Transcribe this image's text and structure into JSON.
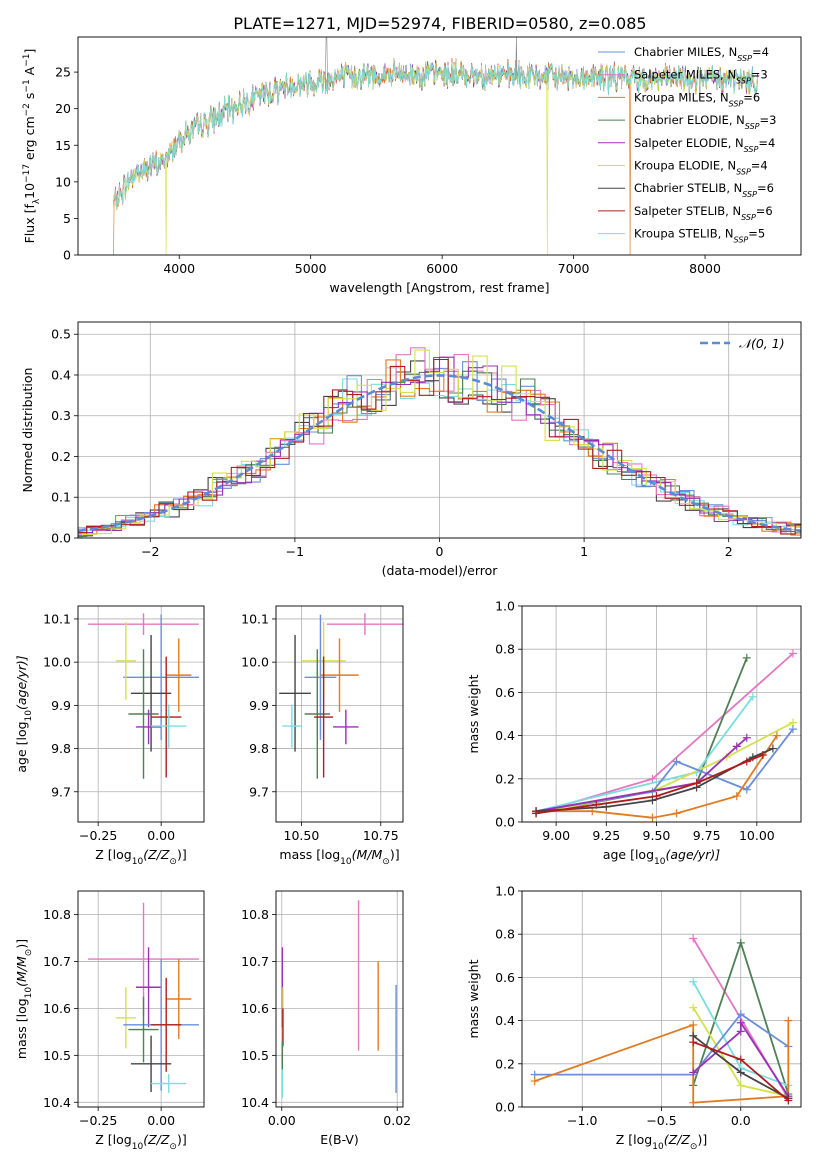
{
  "title": "PLATE=1271, MJD=52974, FIBERID=0580, z=0.085",
  "colors": {
    "Chabrier MILES": "#6a8fd8",
    "Salpeter MILES": "#e377c2",
    "Kroupa MILES": "#e07b22",
    "Chabrier ELODIE": "#4e8054",
    "Salpeter ELODIE": "#9b30b5",
    "Kroupa ELODIE": "#d6e04c",
    "Chabrier STELIB": "#444444",
    "Salpeter STELIB": "#b01c1c",
    "Kroupa STELIB": "#7adde0",
    "normal": "#5b8ad6"
  },
  "legend": [
    {
      "model": "Chabrier MILES",
      "label": "Chabrier MILES, N",
      "n": "4"
    },
    {
      "model": "Salpeter MILES",
      "label": "Salpeter MILES, N",
      "n": "3"
    },
    {
      "model": "Kroupa MILES",
      "label": "Kroupa MILES, N",
      "n": "6"
    },
    {
      "model": "Chabrier ELODIE",
      "label": "Chabrier ELODIE, N",
      "n": "3"
    },
    {
      "model": "Salpeter ELODIE",
      "label": "Salpeter ELODIE, N",
      "n": "4"
    },
    {
      "model": "Kroupa ELODIE",
      "label": "Kroupa ELODIE, N",
      "n": "4"
    },
    {
      "model": "Chabrier STELIB",
      "label": "Chabrier STELIB, N",
      "n": "6"
    },
    {
      "model": "Salpeter STELIB",
      "label": "Salpeter STELIB, N",
      "n": "6"
    },
    {
      "model": "Kroupa STELIB",
      "label": "Kroupa STELIB, N",
      "n": "5"
    }
  ],
  "legend_sub": "SSP",
  "legend2_label": "𝒩(0, 1)",
  "chart_data": [
    {
      "id": "spectrum",
      "type": "line",
      "xlabel": "wavelength [Angstrom, rest frame]",
      "ylabel": "Flux [f",
      "xlim": [
        3230,
        8730
      ],
      "ylim": [
        0,
        29.8
      ],
      "xticks": [
        4000,
        5000,
        6000,
        7000,
        8000
      ],
      "yticks": [
        0,
        5,
        10,
        15,
        20,
        25
      ],
      "grid": false,
      "continuum": [
        [
          3500,
          7
        ],
        [
          3650,
          11
        ],
        [
          3900,
          13
        ],
        [
          4000,
          16
        ],
        [
          4200,
          18
        ],
        [
          4500,
          21
        ],
        [
          4800,
          23
        ],
        [
          5200,
          24.3
        ],
        [
          5600,
          24.6
        ],
        [
          6000,
          24.8
        ],
        [
          6500,
          24.5
        ],
        [
          7000,
          24.3
        ],
        [
          7500,
          24.2
        ],
        [
          8000,
          24
        ],
        [
          8400,
          23.8
        ]
      ],
      "range": [
        3500,
        8400
      ],
      "dropouts": [
        {
          "model": "Kroupa ELODIE",
          "start": 3900,
          "end": 6800
        },
        {
          "model": "Kroupa MILES",
          "start": 3500,
          "end": 7430
        }
      ]
    },
    {
      "id": "residuals",
      "type": "histogram",
      "xlabel": "(data-model)/error",
      "ylabel": "Normed distribution",
      "xlim": [
        -2.5,
        2.5
      ],
      "ylim": [
        0,
        0.53
      ],
      "xticks": [
        -2,
        -1,
        0,
        1,
        2
      ],
      "yticks": [
        0.0,
        0.1,
        0.2,
        0.3,
        0.4,
        0.5
      ],
      "grid": true,
      "bin_width": 0.1,
      "reference": {
        "type": "normal",
        "mean": 0,
        "sigma": 1,
        "style": "dashed"
      }
    },
    {
      "id": "age-Z",
      "type": "errorbar",
      "xlabel": "Z [log",
      "xlabel_parts": [
        "Z [log",
        "10",
        "(Z/Z",
        "⊙",
        ")]"
      ],
      "ylabel": "age  [log",
      "ylabel_parts": [
        "age  [log",
        "10",
        "(age/yr)]"
      ],
      "xlim": [
        -0.33,
        0.17
      ],
      "ylim": [
        9.63,
        10.13
      ],
      "xticks": [
        -0.25,
        0.0
      ],
      "yticks": [
        9.7,
        9.8,
        9.9,
        10.0,
        10.1
      ],
      "grid": true,
      "points": [
        {
          "model": "Salpeter MILES",
          "x": -0.07,
          "xerr": 0.22,
          "y": 10.088,
          "yerr": 0.025
        },
        {
          "model": "Chabrier MILES",
          "x": 0.0,
          "xerr": 0.15,
          "y": 9.965,
          "yerr": 0.145
        },
        {
          "model": "Kroupa MILES",
          "x": 0.07,
          "xerr": 0.05,
          "y": 9.97,
          "yerr": 0.085
        },
        {
          "model": "Chabrier STELIB",
          "x": -0.04,
          "xerr": 0.08,
          "y": 9.928,
          "yerr": 0.135
        },
        {
          "model": "Kroupa ELODIE",
          "x": -0.14,
          "xerr": 0.04,
          "y": 10.003,
          "yerr": 0.09
        },
        {
          "model": "Chabrier ELODIE",
          "x": -0.07,
          "xerr": 0.06,
          "y": 9.88,
          "yerr": 0.15
        },
        {
          "model": "Salpeter STELIB",
          "x": 0.02,
          "xerr": 0.06,
          "y": 9.873,
          "yerr": 0.14
        },
        {
          "model": "Salpeter ELODIE",
          "x": -0.05,
          "xerr": 0.05,
          "y": 9.85,
          "yerr": 0.04
        },
        {
          "model": "Kroupa STELIB",
          "x": 0.03,
          "xerr": 0.07,
          "y": 9.852,
          "yerr": 0.05
        }
      ]
    },
    {
      "id": "age-mass",
      "type": "errorbar",
      "xlabel": "mass [log",
      "xlabel_parts": [
        "mass [log",
        "10",
        "(M/M",
        "⊙",
        ")]"
      ],
      "xlim": [
        10.42,
        10.82
      ],
      "ylim": [
        9.63,
        10.13
      ],
      "xticks": [
        10.5,
        10.75
      ],
      "yticks": [
        9.7,
        9.8,
        9.9,
        10.0,
        10.1
      ],
      "grid": true,
      "points": [
        {
          "model": "Salpeter MILES",
          "x": 10.7,
          "xerr": 0.12,
          "y": 10.088,
          "yerr": 0.025
        },
        {
          "model": "Kroupa ELODIE",
          "x": 10.57,
          "xerr": 0.07,
          "y": 10.003,
          "yerr": 0.09
        },
        {
          "model": "Chabrier MILES",
          "x": 10.56,
          "xerr": 0.05,
          "y": 9.965,
          "yerr": 0.145
        },
        {
          "model": "Kroupa MILES",
          "x": 10.62,
          "xerr": 0.06,
          "y": 9.97,
          "yerr": 0.085
        },
        {
          "model": "Chabrier STELIB",
          "x": 10.48,
          "xerr": 0.05,
          "y": 9.928,
          "yerr": 0.135
        },
        {
          "model": "Chabrier ELODIE",
          "x": 10.55,
          "xerr": 0.04,
          "y": 9.88,
          "yerr": 0.15
        },
        {
          "model": "Salpeter STELIB",
          "x": 10.57,
          "xerr": 0.03,
          "y": 9.873,
          "yerr": 0.14
        },
        {
          "model": "Salpeter ELODIE",
          "x": 10.64,
          "xerr": 0.04,
          "y": 9.85,
          "yerr": 0.04
        },
        {
          "model": "Kroupa STELIB",
          "x": 10.47,
          "xerr": 0.03,
          "y": 9.852,
          "yerr": 0.05
        }
      ]
    },
    {
      "id": "weight-age",
      "type": "line",
      "xlabel": "age  [log",
      "xlabel_parts": [
        "age  [log",
        "10",
        "(age/yr)]"
      ],
      "ylabel": "mass weight",
      "xlim": [
        8.83,
        10.22
      ],
      "ylim": [
        0,
        1.0
      ],
      "xticks": [
        9.0,
        9.25,
        9.5,
        9.75,
        10.0
      ],
      "yticks": [
        0.0,
        0.2,
        0.4,
        0.6,
        0.8,
        1.0
      ],
      "grid": true,
      "series": [
        {
          "model": "Salpeter MILES",
          "x": [
            8.9,
            9.48,
            10.18
          ],
          "y": [
            0.04,
            0.2,
            0.78
          ]
        },
        {
          "model": "Chabrier ELODIE",
          "x": [
            8.9,
            9.7,
            9.95
          ],
          "y": [
            0.04,
            0.18,
            0.76
          ]
        },
        {
          "model": "Kroupa STELIB",
          "x": [
            8.9,
            9.7,
            9.98
          ],
          "y": [
            0.05,
            0.23,
            0.58
          ]
        },
        {
          "model": "Kroupa ELODIE",
          "x": [
            8.9,
            9.5,
            9.85,
            10.18
          ],
          "y": [
            0.04,
            0.15,
            0.3,
            0.46
          ]
        },
        {
          "model": "Chabrier MILES",
          "x": [
            8.9,
            9.48,
            9.6,
            9.95,
            10.18
          ],
          "y": [
            0.05,
            0.14,
            0.28,
            0.15,
            0.43
          ]
        },
        {
          "model": "Kroupa MILES",
          "x": [
            8.9,
            9.18,
            9.48,
            9.6,
            9.9,
            10.1
          ],
          "y": [
            0.05,
            0.05,
            0.02,
            0.04,
            0.12,
            0.4
          ]
        },
        {
          "model": "Salpeter ELODIE",
          "x": [
            8.9,
            9.7,
            9.9,
            9.95
          ],
          "y": [
            0.05,
            0.18,
            0.35,
            0.39
          ]
        },
        {
          "model": "Chabrier STELIB",
          "x": [
            8.9,
            9.25,
            9.48,
            9.7,
            9.98,
            10.08
          ],
          "y": [
            0.05,
            0.07,
            0.1,
            0.16,
            0.3,
            0.34
          ]
        },
        {
          "model": "Salpeter STELIB",
          "x": [
            8.9,
            9.2,
            9.5,
            9.7,
            9.95,
            10.03
          ],
          "y": [
            0.04,
            0.08,
            0.12,
            0.18,
            0.28,
            0.31
          ]
        }
      ]
    },
    {
      "id": "mass-Z",
      "type": "errorbar",
      "xlabel": "Z [log",
      "xlabel_parts": [
        "Z [log",
        "10",
        "(Z/Z",
        "⊙",
        ")]"
      ],
      "ylabel": "mass [log",
      "ylabel_parts": [
        "mass [log",
        "10",
        "(M/M",
        "⊙",
        ")]"
      ],
      "xlim": [
        -0.33,
        0.17
      ],
      "ylim": [
        10.39,
        10.85
      ],
      "xticks": [
        -0.25,
        0.0
      ],
      "yticks": [
        10.4,
        10.5,
        10.6,
        10.7,
        10.8
      ],
      "grid": true,
      "points": [
        {
          "model": "Salpeter MILES",
          "x": -0.07,
          "xerr": 0.22,
          "y": 10.705,
          "yerr": 0.12
        },
        {
          "model": "Salpeter ELODIE",
          "x": -0.05,
          "xerr": 0.05,
          "y": 10.645,
          "yerr": 0.085
        },
        {
          "model": "Kroupa MILES",
          "x": 0.07,
          "xerr": 0.05,
          "y": 10.62,
          "yerr": 0.085
        },
        {
          "model": "Kroupa ELODIE",
          "x": -0.14,
          "xerr": 0.04,
          "y": 10.58,
          "yerr": 0.065
        },
        {
          "model": "Chabrier MILES",
          "x": 0.0,
          "xerr": 0.15,
          "y": 10.565,
          "yerr": 0.14
        },
        {
          "model": "Salpeter STELIB",
          "x": 0.02,
          "xerr": 0.06,
          "y": 10.565,
          "yerr": 0.1
        },
        {
          "model": "Chabrier ELODIE",
          "x": -0.07,
          "xerr": 0.06,
          "y": 10.555,
          "yerr": 0.07
        },
        {
          "model": "Chabrier STELIB",
          "x": -0.04,
          "xerr": 0.08,
          "y": 10.482,
          "yerr": 0.06
        },
        {
          "model": "Kroupa STELIB",
          "x": 0.03,
          "xerr": 0.07,
          "y": 10.44,
          "yerr": 0.02
        }
      ]
    },
    {
      "id": "mass-EBV",
      "type": "errorbar",
      "xlabel": "E(B-V)",
      "xlim": [
        -0.001,
        0.021
      ],
      "ylim": [
        10.39,
        10.85
      ],
      "xticks": [
        0.0,
        0.02
      ],
      "xticklabels": [
        "0.00",
        "0.02"
      ],
      "yticks": [
        10.4,
        10.5,
        10.6,
        10.7,
        10.8
      ],
      "grid": true,
      "points": [
        {
          "model": "Salpeter ELODIE",
          "x": 0.0001,
          "y": 10.645,
          "yerr": 0.085
        },
        {
          "model": "Kroupa ELODIE",
          "x": 0.0002,
          "y": 10.58,
          "yerr": 0.065
        },
        {
          "model": "Salpeter STELIB",
          "x": 0.0002,
          "y": 10.56,
          "yerr": 0.04
        },
        {
          "model": "Chabrier ELODIE",
          "x": 0.0001,
          "y": 10.5,
          "yerr": 0.03
        },
        {
          "model": "Kroupa STELIB",
          "x": 0.0001,
          "y": 10.44,
          "yerr": 0.03
        },
        {
          "model": "Salpeter MILES",
          "x": 0.0133,
          "y": 10.67,
          "yerr": 0.16
        },
        {
          "model": "Kroupa MILES",
          "x": 0.0167,
          "y": 10.605,
          "yerr": 0.095
        },
        {
          "model": "Chabrier MILES",
          "x": 0.0198,
          "y": 10.535,
          "yerr": 0.115
        }
      ]
    },
    {
      "id": "weight-Z",
      "type": "line",
      "xlabel": "Z [log",
      "xlabel_parts": [
        "Z [log",
        "10",
        "(Z/Z",
        "⊙",
        ")]"
      ],
      "ylabel": "mass weight",
      "xlim": [
        -1.38,
        0.38
      ],
      "ylim": [
        0,
        1.0
      ],
      "xticks": [
        -1.0,
        -0.5,
        0.0
      ],
      "yticks": [
        0.0,
        0.2,
        0.4,
        0.6,
        0.8,
        1.0
      ],
      "grid": true,
      "series": [
        {
          "model": "Salpeter MILES",
          "x": [
            -0.3,
            0.3
          ],
          "y": [
            0.78,
            0.04
          ]
        },
        {
          "model": "Chabrier ELODIE",
          "x": [
            -0.3,
            0.0,
            0.3
          ],
          "y": [
            0.1,
            0.76,
            0.06
          ]
        },
        {
          "model": "Kroupa STELIB",
          "x": [
            -0.3,
            0.0,
            0.3
          ],
          "y": [
            0.58,
            0.18,
            0.1
          ]
        },
        {
          "model": "Kroupa ELODIE",
          "x": [
            -0.3,
            0.0,
            0.3
          ],
          "y": [
            0.46,
            0.1,
            0.05
          ]
        },
        {
          "model": "Chabrier MILES",
          "x": [
            -1.3,
            -0.3,
            0.0,
            0.3
          ],
          "y": [
            0.15,
            0.15,
            0.43,
            0.28
          ]
        },
        {
          "model": "Kroupa MILES",
          "x": [
            -1.3,
            -0.3,
            -0.3,
            0.3,
            0.3
          ],
          "y": [
            0.12,
            0.38,
            0.02,
            0.05,
            0.4
          ]
        },
        {
          "model": "Salpeter ELODIE",
          "x": [
            -0.3,
            0.0,
            0.0,
            0.3
          ],
          "y": [
            0.16,
            0.35,
            0.39,
            0.05
          ]
        },
        {
          "model": "Chabrier STELIB",
          "x": [
            -0.3,
            0.0,
            0.3
          ],
          "y": [
            0.33,
            0.16,
            0.04
          ]
        },
        {
          "model": "Salpeter STELIB",
          "x": [
            -0.3,
            0.0,
            0.3
          ],
          "y": [
            0.3,
            0.22,
            0.03
          ]
        }
      ]
    }
  ]
}
